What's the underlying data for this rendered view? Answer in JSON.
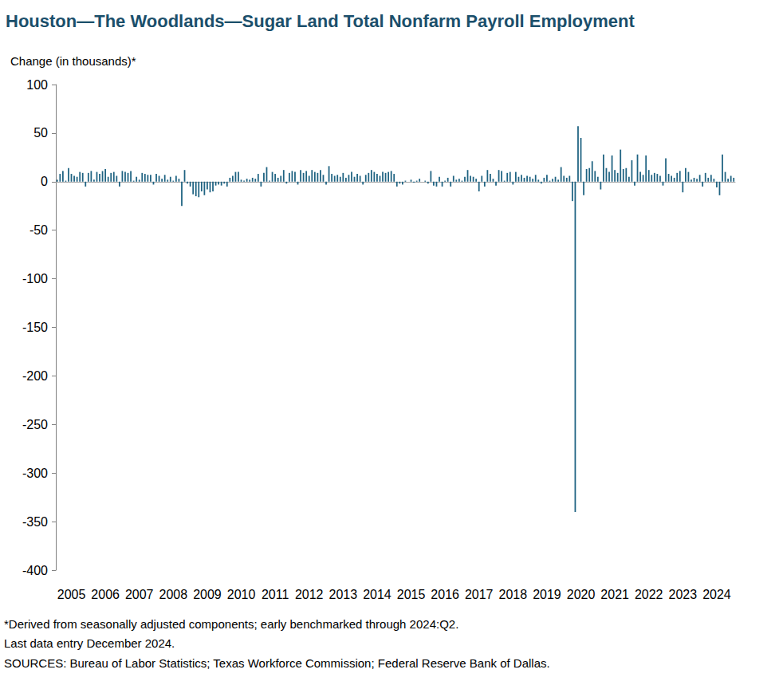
{
  "chart_data": {
    "type": "bar",
    "title": "Houston—The Woodlands—Sugar Land Total Nonfarm Payroll Employment",
    "y_label": "Change (in thousands)*",
    "notes": [
      "*Derived from seasonally adjusted components; early benchmarked through 2024:Q2.",
      "Last data entry December 2024.",
      "SOURCES: Bureau of Labor Statistics; Texas Workforce Commission; Federal Reserve Bank of Dallas."
    ],
    "categories": [
      null,
      null,
      null,
      null,
      null,
      "2005",
      null,
      null,
      null,
      null,
      null,
      null,
      null,
      null,
      null,
      null,
      null,
      "2006",
      null,
      null,
      null,
      null,
      null,
      null,
      null,
      null,
      null,
      null,
      null,
      "2007",
      null,
      null,
      null,
      null,
      null,
      null,
      null,
      null,
      null,
      null,
      null,
      "2008",
      null,
      null,
      null,
      null,
      null,
      null,
      null,
      null,
      null,
      null,
      null,
      "2009",
      null,
      null,
      null,
      null,
      null,
      null,
      null,
      null,
      null,
      null,
      null,
      "2010",
      null,
      null,
      null,
      null,
      null,
      null,
      null,
      null,
      null,
      null,
      null,
      "2011",
      null,
      null,
      null,
      null,
      null,
      null,
      null,
      null,
      null,
      null,
      null,
      "2012",
      null,
      null,
      null,
      null,
      null,
      null,
      null,
      null,
      null,
      null,
      null,
      "2013",
      null,
      null,
      null,
      null,
      null,
      null,
      null,
      null,
      null,
      null,
      null,
      "2014",
      null,
      null,
      null,
      null,
      null,
      null,
      null,
      null,
      null,
      null,
      null,
      "2015",
      null,
      null,
      null,
      null,
      null,
      null,
      null,
      null,
      null,
      null,
      null,
      "2016",
      null,
      null,
      null,
      null,
      null,
      null,
      null,
      null,
      null,
      null,
      null,
      "2017",
      null,
      null,
      null,
      null,
      null,
      null,
      null,
      null,
      null,
      null,
      null,
      "2018",
      null,
      null,
      null,
      null,
      null,
      null,
      null,
      null,
      null,
      null,
      null,
      "2019",
      null,
      null,
      null,
      null,
      null,
      null,
      null,
      null,
      null,
      null,
      null,
      "2020",
      null,
      null,
      null,
      null,
      null,
      null,
      null,
      null,
      null,
      null,
      null,
      "2021",
      null,
      null,
      null,
      null,
      null,
      null,
      null,
      null,
      null,
      null,
      null,
      "2022",
      null,
      null,
      null,
      null,
      null,
      null,
      null,
      null,
      null,
      null,
      null,
      "2023",
      null,
      null,
      null,
      null,
      null,
      null,
      null,
      null,
      null,
      null,
      null,
      "2024",
      null,
      null,
      null,
      null,
      null,
      null
    ],
    "values": [
      2,
      8,
      11,
      1,
      14,
      8,
      6,
      5,
      10,
      9,
      -5,
      9,
      11,
      2,
      10,
      8,
      11,
      13,
      5,
      9,
      10,
      6,
      -5,
      11,
      10,
      9,
      11,
      1,
      5,
      2,
      9,
      8,
      7,
      7,
      -3,
      8,
      6,
      3,
      7,
      2,
      5,
      1,
      6,
      3,
      -25,
      12,
      -2,
      -5,
      -13,
      -15,
      -16,
      -10,
      -14,
      -8,
      -11,
      -10,
      -4,
      -3,
      -4,
      -2,
      -5,
      4,
      6,
      10,
      10,
      2,
      1,
      3,
      2,
      4,
      3,
      8,
      -5,
      9,
      15,
      1,
      10,
      8,
      4,
      6,
      12,
      -2,
      9,
      11,
      10,
      -3,
      12,
      9,
      11,
      6,
      12,
      10,
      9,
      12,
      7,
      -3,
      16,
      8,
      6,
      7,
      5,
      9,
      4,
      7,
      10,
      5,
      8,
      6,
      -3,
      7,
      9,
      12,
      10,
      8,
      6,
      10,
      9,
      10,
      11,
      8,
      -5,
      -2,
      -3,
      1,
      0,
      2,
      -1,
      1,
      3,
      0,
      1,
      -2,
      11,
      -4,
      -5,
      5,
      -5,
      1,
      4,
      -5,
      6,
      2,
      3,
      1,
      5,
      12,
      6,
      5,
      3,
      -10,
      6,
      -5,
      12,
      8,
      3,
      -4,
      12,
      11,
      1,
      9,
      10,
      -3,
      10,
      5,
      7,
      4,
      6,
      5,
      3,
      7,
      2,
      -2,
      4,
      7,
      1,
      3,
      5,
      2,
      15,
      6,
      4,
      6,
      -20,
      -340,
      57,
      45,
      -14,
      13,
      14,
      21,
      11,
      5,
      -8,
      28,
      14,
      10,
      27,
      12,
      9,
      33,
      13,
      14,
      5,
      22,
      -4,
      28,
      10,
      7,
      27,
      12,
      7,
      9,
      8,
      6,
      -4,
      24,
      8,
      6,
      4,
      9,
      11,
      -11,
      14,
      10,
      2,
      4,
      3,
      7,
      -5,
      9,
      4,
      7,
      3,
      -6,
      -14,
      28,
      10,
      3,
      6,
      4
    ],
    "color": "#1f6382",
    "ylim": [
      -400,
      100
    ],
    "yticks": [
      -400,
      -350,
      -300,
      -250,
      -200,
      -150,
      -100,
      -50,
      0,
      50,
      100
    ],
    "grid": false
  }
}
